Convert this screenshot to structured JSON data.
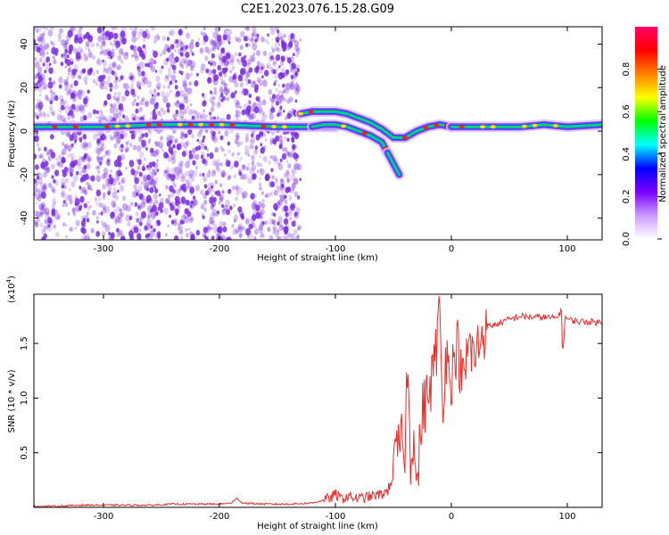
{
  "title": "C2E1.2023.076.15.28.G09",
  "colors": {
    "frame": "#000000",
    "snr_line": "#e8302a",
    "scatter": "#7a2be0",
    "colorbar": [
      "#ffffff",
      "#cc99ff",
      "#7a00ff",
      "#0000ff",
      "#00ffff",
      "#00ff00",
      "#ffff00",
      "#ff8000",
      "#ff0000",
      "#ff0066"
    ]
  },
  "chart_data": [
    {
      "type": "heatmap",
      "title": "",
      "xlabel": "Height of straight line (km)",
      "ylabel": "Frequency (Hz)",
      "xlim": [
        -360,
        130
      ],
      "ylim": [
        -50,
        48
      ],
      "xticks": [
        -300,
        -200,
        -100,
        0,
        100
      ],
      "yticks": [
        -40,
        -20,
        0,
        20,
        40
      ],
      "colorbar": {
        "label": "Normalized spectral amplitude",
        "range": [
          0.0,
          1.0
        ],
        "ticks": [
          "0.0",
          "0.2",
          "0.4",
          "0.6",
          "0.8"
        ]
      },
      "ridges": [
        {
          "x": [
            -360,
            -300,
            -250,
            -200,
            -150,
            -120,
            -100
          ],
          "y": [
            2,
            2,
            3,
            3,
            2,
            2,
            2
          ]
        },
        {
          "x": [
            -120,
            -110,
            -100,
            -90,
            -80,
            -70,
            -60,
            -55
          ],
          "y": [
            2,
            3,
            3,
            2,
            0,
            -2,
            -5,
            -10
          ]
        },
        {
          "x": [
            -130,
            -120,
            -100,
            -90,
            -80,
            -70,
            -60,
            -50,
            -40,
            -30,
            -20,
            -10,
            0
          ],
          "y": [
            8,
            9,
            9,
            8,
            6,
            4,
            1,
            -3,
            -3,
            0,
            2,
            3,
            2
          ]
        },
        {
          "x": [
            0,
            20,
            40,
            60,
            80,
            100,
            130
          ],
          "y": [
            2,
            2,
            2,
            2,
            3,
            2,
            3
          ]
        },
        {
          "x": [
            -55,
            -50,
            -45
          ],
          "y": [
            -10,
            -15,
            -20
          ]
        }
      ]
    },
    {
      "type": "line",
      "title": "",
      "xlabel": "Height of straight line (km)",
      "ylabel": "SNR (10 * v/v)",
      "exponent_label": "(x10",
      "exponent_sup": "4",
      "xlim": [
        -360,
        130
      ],
      "ylim": [
        0,
        1.95
      ],
      "xticks": [
        -300,
        -200,
        -100,
        0,
        100
      ],
      "yticks": [
        0.5,
        1.0,
        1.5
      ],
      "yticklabels": [
        "0.5",
        "1.0",
        "1.5"
      ],
      "series": [
        {
          "x": [
            -360,
            -340,
            -320,
            -300,
            -280,
            -260,
            -240,
            -220,
            -200,
            -190,
            -185,
            -180,
            -160,
            -140,
            -120,
            -105,
            -100,
            -95,
            -90,
            -80,
            -70,
            -60,
            -55,
            -50,
            -45,
            -40,
            -38,
            -35,
            -32,
            -30,
            -25,
            -20,
            -15,
            -12,
            -10,
            -8,
            -5,
            0,
            5,
            10,
            15,
            20,
            25,
            30,
            40,
            50,
            60,
            70,
            80,
            90,
            95,
            96,
            98,
            100,
            110,
            120,
            130
          ],
          "y": [
            0.01,
            0.01,
            0.02,
            0.02,
            0.02,
            0.02,
            0.03,
            0.03,
            0.03,
            0.04,
            0.08,
            0.04,
            0.03,
            0.03,
            0.04,
            0.08,
            0.12,
            0.08,
            0.1,
            0.08,
            0.1,
            0.12,
            0.15,
            0.3,
            0.6,
            0.55,
            1.3,
            0.4,
            0.8,
            0.1,
            0.9,
            1.0,
            1.3,
            1.5,
            1.95,
            0.9,
            1.4,
            1.2,
            1.5,
            1.1,
            1.5,
            1.35,
            1.55,
            1.65,
            1.68,
            1.72,
            1.75,
            1.74,
            1.74,
            1.73,
            1.8,
            1.35,
            1.75,
            1.72,
            1.7,
            1.7,
            1.69
          ]
        }
      ]
    }
  ]
}
